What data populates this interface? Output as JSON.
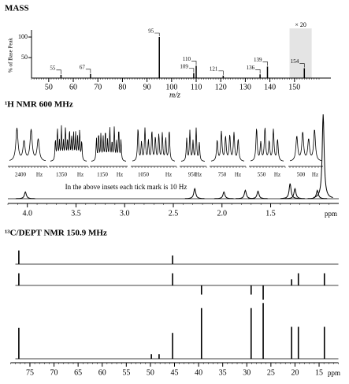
{
  "chart_data": [
    {
      "type": "bar",
      "title": "MASS",
      "ylabel": "% of Base Peak",
      "xlabel": "m/z",
      "x": [
        55,
        67,
        95,
        109,
        110,
        121,
        136,
        139,
        154
      ],
      "values": [
        8,
        10,
        100,
        12,
        30,
        6,
        9,
        28,
        24
      ],
      "xlim": [
        43,
        160
      ],
      "ylim": [
        0,
        100
      ],
      "xticks": [
        50,
        60,
        70,
        80,
        90,
        100,
        110,
        120,
        130,
        140,
        150
      ],
      "yticks": [
        50,
        100
      ],
      "color": "#000000",
      "zoom": {
        "label": "× 20",
        "range": [
          148,
          157
        ]
      }
    },
    {
      "type": "spectrum",
      "title": "¹H NMR 600 MHz",
      "note": "In the above insets each tick mark is 10 Hz",
      "xlabel": "ppm",
      "x": [
        4.02,
        2.28,
        1.98,
        1.76,
        1.63,
        1.3,
        1.25,
        1.02,
        0.96
      ],
      "values": [
        8,
        12,
        8,
        10,
        9,
        18,
        12,
        10,
        100
      ],
      "xlim": [
        4.2,
        0.8
      ],
      "ylim": [
        0,
        100
      ],
      "xticks": [
        {
          "value": 4,
          "label": "4.0"
        },
        3.5,
        {
          "value": 3,
          "label": "3.0"
        },
        2.5,
        {
          "value": 2,
          "label": "2.0"
        },
        1.5
      ],
      "color": "#000000",
      "insets": [
        {
          "tick": 2400,
          "unit": "Hz"
        },
        {
          "tick": 1350,
          "unit": "Hz"
        },
        {
          "tick": 1150,
          "unit": "Hz"
        },
        {
          "tick": 1050,
          "unit": "Hz"
        },
        {
          "tick": 950,
          "unit": "Hz"
        },
        {
          "tick": 750,
          "unit": "Hz"
        },
        {
          "tick": 550,
          "unit": "Hz"
        },
        {
          "tick": 500,
          "unit": "Hz"
        }
      ]
    },
    {
      "type": "stick",
      "title": "¹³C/DEPT NMR 150.9 MHz",
      "xlabel": "ppm",
      "x": [
        77.3,
        49.8,
        48.2,
        45.4,
        39.4,
        29.1,
        26.6,
        20.7,
        19.3,
        13.9
      ],
      "series": [
        {
          "values": [
            27,
            0,
            0,
            17,
            0,
            0,
            0,
            0,
            0,
            0
          ]
        },
        {
          "values": [
            24,
            0,
            0,
            24,
            -18,
            -18,
            -28,
            12,
            24,
            24
          ]
        },
        {
          "values": [
            61,
            9,
            9,
            51,
            100,
            100,
            110,
            63,
            63,
            63
          ]
        }
      ],
      "xlim": [
        79,
        11
      ],
      "ylim": [
        -30,
        110
      ],
      "xticks": [
        75,
        70,
        65,
        60,
        55,
        50,
        45,
        40,
        35,
        30,
        25,
        20,
        15
      ],
      "color": "#000000"
    }
  ]
}
